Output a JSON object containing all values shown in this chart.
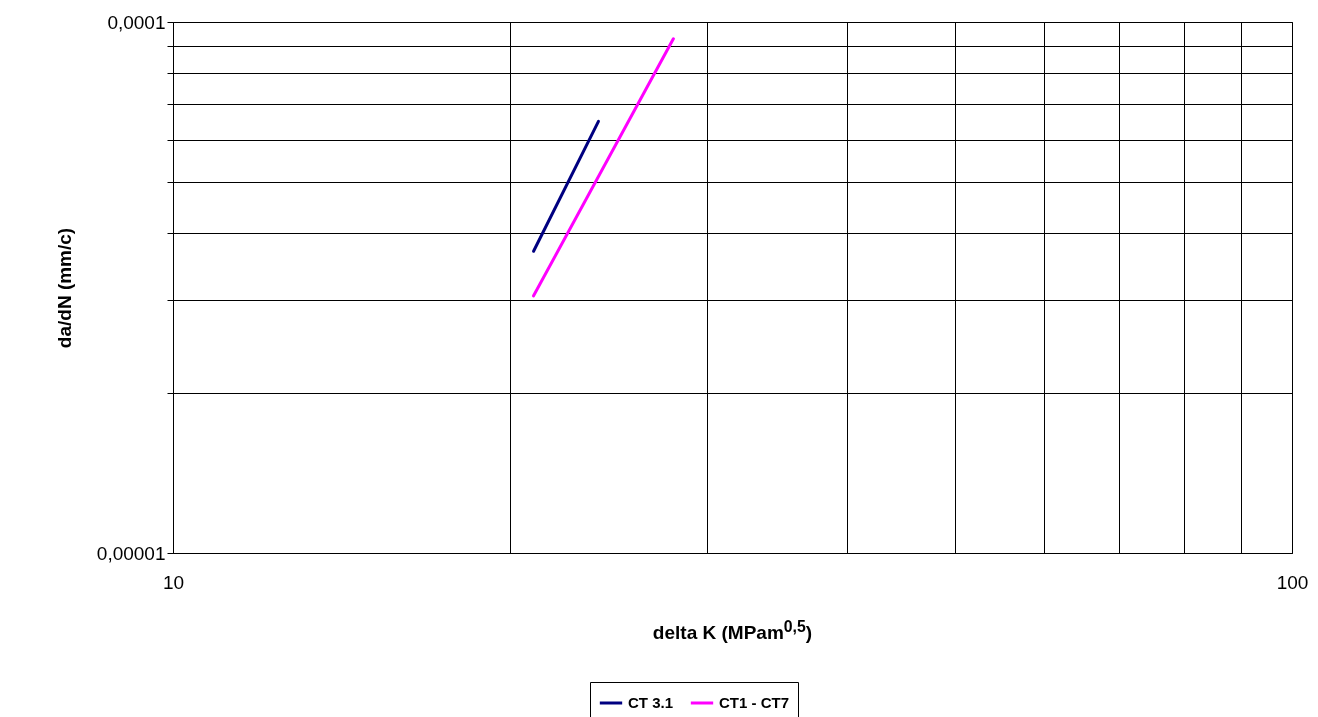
{
  "chart_data": {
    "type": "line",
    "xlabel": "delta K (MPam$^{0,5}$)",
    "ylabel": "da/dN (mm/c)",
    "series": [
      {
        "name": "CT 3.1",
        "color": "#000080",
        "x": [
          21.0,
          24.0
        ],
        "values": [
          3.7e-05,
          6.5e-05
        ]
      },
      {
        "name": "CT1 - CT7",
        "color": "#ff00ff",
        "x": [
          21.0,
          28.0
        ],
        "values": [
          3.05e-05,
          9.3e-05
        ]
      }
    ],
    "log": "xy",
    "xlim": [
      10,
      100
    ],
    "ylim": [
      1e-05,
      0.0001
    ],
    "xticks": [
      10,
      {
        "value": 20,
        "label": null
      },
      {
        "value": 30,
        "label": null
      },
      {
        "value": 40,
        "label": null
      },
      {
        "value": 50,
        "label": null
      },
      {
        "value": 60,
        "label": null
      },
      {
        "value": 70,
        "label": null
      },
      {
        "value": 80,
        "label": null
      },
      {
        "value": 90,
        "label": null
      },
      100
    ],
    "yticks": [
      {
        "value": 1e-05,
        "label": "0,00001"
      },
      {
        "value": 2e-05,
        "label": null
      },
      {
        "value": 3e-05,
        "label": null
      },
      {
        "value": 4e-05,
        "label": null
      },
      {
        "value": 5e-05,
        "label": null
      },
      {
        "value": 6e-05,
        "label": null
      },
      {
        "value": 7e-05,
        "label": null
      },
      {
        "value": 8e-05,
        "label": null
      },
      {
        "value": 9e-05,
        "label": null
      },
      {
        "value": 0.0001,
        "label": "0,0001"
      }
    ],
    "grid": true,
    "legend": "bottom",
    "line_style": "solid",
    "marker": "none"
  }
}
